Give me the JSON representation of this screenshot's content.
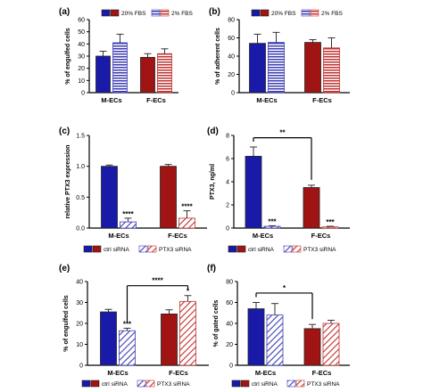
{
  "colors": {
    "blue": "#1a1aa8",
    "red": "#a01414",
    "blue_hatch": "#3c3cb4",
    "red_hatch": "#c03030"
  },
  "chart_data": [
    {
      "panel": "(a)",
      "type": "bar",
      "ylabel": "% of engulfed cells",
      "ylim": [
        0,
        60
      ],
      "yticks": [
        "0",
        "10",
        "20",
        "30",
        "40",
        "50",
        "60"
      ],
      "categories": [
        "M-ECs",
        "F-ECs"
      ],
      "legend": [
        "20% FBS",
        "2% FBS"
      ],
      "series": [
        {
          "name": "20% FBS",
          "values": [
            30,
            29
          ],
          "errors": [
            4,
            3
          ]
        },
        {
          "name": "2% FBS",
          "values": [
            41,
            32
          ],
          "errors": [
            7,
            4
          ]
        }
      ],
      "significance": [],
      "bracket": null
    },
    {
      "panel": "(b)",
      "type": "bar",
      "ylabel": "% of adherent cells",
      "ylim": [
        0,
        80
      ],
      "yticks": [
        "0",
        "20",
        "40",
        "60",
        "80"
      ],
      "categories": [
        "M-ECs",
        "F-ECs"
      ],
      "legend": [
        "20% FBS",
        "2% FBS"
      ],
      "series": [
        {
          "name": "20% FBS",
          "values": [
            54,
            55
          ],
          "errors": [
            10,
            3
          ]
        },
        {
          "name": "2% FBS",
          "values": [
            55,
            49
          ],
          "errors": [
            11,
            11
          ]
        }
      ],
      "significance": [],
      "bracket": null
    },
    {
      "panel": "(c)",
      "type": "bar",
      "ylabel": "relative PTX3 expression",
      "ylim": [
        0,
        1.5
      ],
      "yticks": [
        "0.0",
        "0.5",
        "1.0",
        "1.5"
      ],
      "categories": [
        "M-ECs",
        "F-ECs"
      ],
      "legend": [
        "ctrl siRNA",
        "PTX3 siRNA"
      ],
      "series": [
        {
          "name": "ctrl siRNA",
          "values": [
            1.0,
            1.0
          ],
          "errors": [
            0.02,
            0.03
          ]
        },
        {
          "name": "PTX3 siRNA",
          "values": [
            0.1,
            0.16
          ],
          "errors": [
            0.06,
            0.12
          ]
        }
      ],
      "significance": [
        {
          "cat": 0,
          "series": 1,
          "label": "****"
        },
        {
          "cat": 1,
          "series": 1,
          "label": "****"
        }
      ],
      "bracket": null
    },
    {
      "panel": "(d)",
      "type": "bar",
      "ylabel": "PTX3, ng/ml",
      "ylim": [
        0,
        8
      ],
      "yticks": [
        "0",
        "2",
        "4",
        "6",
        "8"
      ],
      "categories": [
        "M-ECs",
        "F-ECs"
      ],
      "legend": [
        "ctrl siRNA",
        "PTX3 siRNA"
      ],
      "series": [
        {
          "name": "ctrl siRNA",
          "values": [
            6.2,
            3.5
          ],
          "errors": [
            0.8,
            0.2
          ]
        },
        {
          "name": "PTX3 siRNA",
          "values": [
            0.15,
            0.1
          ],
          "errors": [
            0.05,
            0.05
          ]
        }
      ],
      "significance": [
        {
          "cat": 0,
          "series": 1,
          "label": "***"
        },
        {
          "cat": 1,
          "series": 1,
          "label": "***"
        }
      ],
      "bracket": {
        "label": "**",
        "y": 7.8,
        "from": [
          0,
          0
        ],
        "to": [
          1,
          0
        ]
      }
    },
    {
      "panel": "(e)",
      "type": "bar",
      "ylabel": "% of engulfed cells",
      "ylim": [
        0,
        40
      ],
      "yticks": [
        "0",
        "10",
        "20",
        "30",
        "40"
      ],
      "categories": [
        "M-ECs",
        "F-ECs"
      ],
      "legend": [
        "ctrl siRNA",
        "PTX3 siRNA"
      ],
      "series": [
        {
          "name": "ctrl siRNA",
          "values": [
            25.5,
            24.5
          ],
          "errors": [
            1.2,
            2
          ]
        },
        {
          "name": "PTX3 siRNA",
          "values": [
            16.5,
            30.5
          ],
          "errors": [
            1.2,
            2.8
          ]
        }
      ],
      "significance": [
        {
          "cat": 0,
          "series": 1,
          "label": "***"
        },
        {
          "cat": 1,
          "series": 1,
          "label": "*"
        }
      ],
      "bracket": {
        "label": "****",
        "y": 38,
        "from": [
          0,
          1
        ],
        "to": [
          1,
          1
        ]
      }
    },
    {
      "panel": "(f)",
      "type": "bar",
      "ylabel": "% of gated cells",
      "ylim": [
        0,
        80
      ],
      "yticks": [
        "0",
        "20",
        "40",
        "60",
        "80"
      ],
      "categories": [
        "M-ECs",
        "F-ECs"
      ],
      "legend": [
        "ctrl siRNA",
        "PTX3 siRNA"
      ],
      "series": [
        {
          "name": "ctrl siRNA",
          "values": [
            54,
            35
          ],
          "errors": [
            6,
            4
          ]
        },
        {
          "name": "PTX3 siRNA",
          "values": [
            48,
            40
          ],
          "errors": [
            11,
            3
          ]
        }
      ],
      "significance": [],
      "bracket": {
        "label": "*",
        "y": 69,
        "from": [
          0,
          0
        ],
        "to": [
          1,
          0
        ]
      }
    }
  ]
}
